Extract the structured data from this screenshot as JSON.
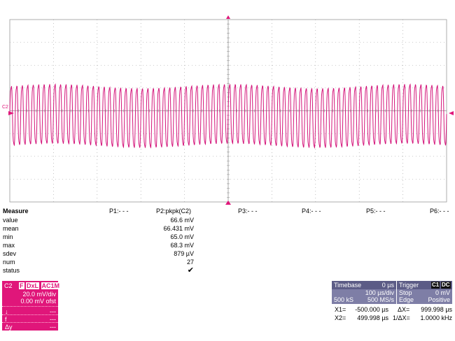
{
  "trace": {
    "channel_marker": "C2",
    "color": "#d4147a",
    "grid_color": "#9a9a9a",
    "cycles": 80
  },
  "measure": {
    "title": "Measure",
    "param_labels": [
      "P1:- - -",
      "P2:pkpk(C2)",
      "P3:- - -",
      "P4:- - -",
      "P5:- - -",
      "P6:- - -"
    ],
    "rows": [
      {
        "label": "value",
        "value": "66.6 mV"
      },
      {
        "label": "mean",
        "value": "66.431 mV"
      },
      {
        "label": "min",
        "value": "65.0 mV"
      },
      {
        "label": "max",
        "value": "68.3 mV"
      },
      {
        "label": "sdev",
        "value": "879 µV"
      },
      {
        "label": "num",
        "value": "27"
      },
      {
        "label": "status",
        "value": "✔"
      }
    ]
  },
  "channel_box": {
    "name": "C2",
    "tags": [
      "F",
      "DxL",
      "AC1M"
    ],
    "vdiv": "20.0 mV/div",
    "offset": "0.00 mV ofst",
    "row_labels": [
      "↓",
      "f",
      "Δy"
    ],
    "row_values": [
      "---",
      "---",
      "---"
    ]
  },
  "timebase": {
    "label": "Timebase",
    "delay": "0 µs",
    "tdiv": "100 µs/div",
    "samples": "500 kS",
    "rate": "500 MS/s"
  },
  "trigger": {
    "label": "Trigger",
    "chips": [
      "C1",
      "DC"
    ],
    "mode": "Stop",
    "level": "0 mV",
    "type": "Edge",
    "slope": "Positive"
  },
  "cursors": {
    "x1_label": "X1=",
    "x1_value": "-500.000 µs",
    "x2_label": "X2=",
    "x2_value": "499.998 µs",
    "dx_label": "ΔX=",
    "dx_value": "999.998 µs",
    "inv_dx_label": "1/ΔX=",
    "inv_dx_value": "1.0000 kHz"
  }
}
